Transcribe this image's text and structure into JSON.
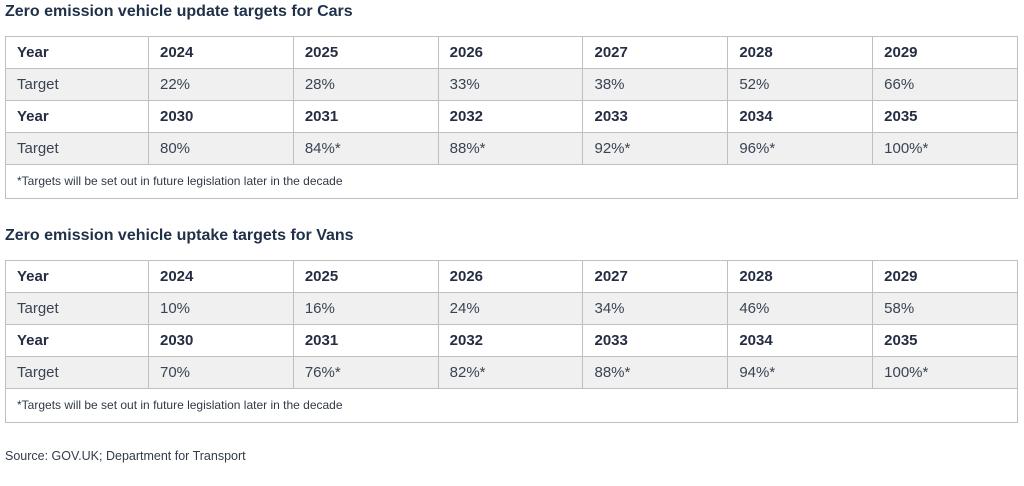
{
  "colors": {
    "title_text": "#1f3048",
    "header_text": "#242d42",
    "body_text": "#3a4254",
    "border": "#bfbfbf",
    "row_shaded_bg": "#f0f0f0",
    "row_plain_bg": "#ffffff"
  },
  "tables": [
    {
      "title": "Zero emission vehicle update targets for Cars",
      "rows": [
        {
          "cells": [
            "Year",
            "2024",
            "2025",
            "2026",
            "2027",
            "2028",
            "2029"
          ]
        },
        {
          "cells": [
            "Target",
            "22%",
            "28%",
            "33%",
            "38%",
            "52%",
            "66%"
          ]
        },
        {
          "cells": [
            "Year",
            "2030",
            "2031",
            "2032",
            "2033",
            "2034",
            "2035"
          ]
        },
        {
          "cells": [
            "Target",
            "80%",
            "84%*",
            "88%*",
            "92%*",
            "96%*",
            "100%*"
          ]
        }
      ],
      "footnote": "*Targets will be set out in future legislation later in the decade"
    },
    {
      "title": "Zero emission vehicle uptake targets for Vans",
      "rows": [
        {
          "cells": [
            "Year",
            "2024",
            "2025",
            "2026",
            "2027",
            "2028",
            "2029"
          ]
        },
        {
          "cells": [
            "Target",
            "10%",
            "16%",
            "24%",
            "34%",
            "46%",
            "58%"
          ]
        },
        {
          "cells": [
            "Year",
            "2030",
            "2031",
            "2032",
            "2033",
            "2034",
            "2035"
          ]
        },
        {
          "cells": [
            "Target",
            "70%",
            "76%*",
            "82%*",
            "88%*",
            "94%*",
            "100%*"
          ]
        }
      ],
      "footnote": "*Targets will be set out in future legislation later in the decade"
    }
  ],
  "source": "Source: GOV.UK; Department for Transport",
  "chart_data": [
    {
      "type": "table",
      "title": "Zero emission vehicle update targets for Cars",
      "row_labels": [
        "Year",
        "Target"
      ],
      "x": [
        2024,
        2025,
        2026,
        2027,
        2028,
        2029,
        2030,
        2031,
        2032,
        2033,
        2034,
        2035
      ],
      "values_percent": [
        22,
        28,
        33,
        38,
        52,
        66,
        80,
        84,
        88,
        92,
        96,
        100
      ],
      "asterisk_years": [
        2031,
        2032,
        2033,
        2034,
        2035
      ],
      "footnote": "*Targets will be set out in future legislation later in the decade"
    },
    {
      "type": "table",
      "title": "Zero emission vehicle uptake targets for Vans",
      "row_labels": [
        "Year",
        "Target"
      ],
      "x": [
        2024,
        2025,
        2026,
        2027,
        2028,
        2029,
        2030,
        2031,
        2032,
        2033,
        2034,
        2035
      ],
      "values_percent": [
        10,
        16,
        24,
        34,
        46,
        58,
        70,
        76,
        82,
        88,
        94,
        100
      ],
      "asterisk_years": [
        2031,
        2032,
        2033,
        2034,
        2035
      ],
      "footnote": "*Targets will be set out in future legislation later in the decade"
    }
  ]
}
